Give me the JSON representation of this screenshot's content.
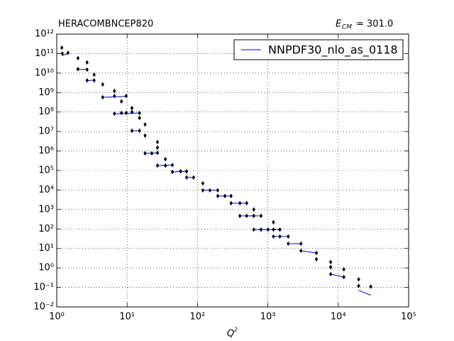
{
  "chart_data": {
    "type": "scatter",
    "title": "HERACOMBNCEP820",
    "energy_symbol": "E",
    "energy_subscript": "CM",
    "energy_text": "= 301.0",
    "xlabel": "Q",
    "xlabel_superscript": "2",
    "xscale": "log",
    "yscale": "log",
    "grid": true,
    "legend": "upper right",
    "xlim": [
      1,
      100000
    ],
    "ylim": [
      0.01,
      1000000000000
    ],
    "xticks": [
      {
        "value": 1,
        "label": "10⁰"
      },
      {
        "value": 10,
        "label": "10¹"
      },
      {
        "value": 100,
        "label": "10²"
      },
      {
        "value": 1000,
        "label": "10³"
      },
      {
        "value": 10000,
        "label": "10⁴"
      },
      {
        "value": 100000,
        "label": "10⁵"
      }
    ],
    "yticks": [
      {
        "value": 0.01,
        "label": "10⁻²"
      },
      {
        "value": 0.1,
        "label": "10⁻¹"
      },
      {
        "value": 1,
        "label": "10⁰"
      },
      {
        "value": 10,
        "label": "10¹"
      },
      {
        "value": 100,
        "label": "10²"
      },
      {
        "value": 1000,
        "label": "10³"
      },
      {
        "value": 10000,
        "label": "10⁴"
      },
      {
        "value": 100000,
        "label": "10⁵"
      },
      {
        "value": 1000000,
        "label": "10⁶"
      },
      {
        "value": 10000000,
        "label": "10⁷"
      },
      {
        "value": 100000000,
        "label": "10⁸"
      },
      {
        "value": 1000000000,
        "label": "10⁹"
      },
      {
        "value": 10000000000,
        "label": "10¹⁰"
      },
      {
        "value": 100000000000,
        "label": "10¹¹"
      },
      {
        "value": 1000000000000,
        "label": "10¹²"
      }
    ],
    "points": {
      "color": "#000000",
      "x": [
        1.18,
        1.2,
        1.45,
        2.0,
        2.0,
        2.7,
        2.7,
        2.7,
        3.4,
        3.4,
        4.5,
        4.5,
        6.6,
        6.6,
        6.6,
        8.3,
        8.3,
        9.7,
        9.7,
        11.7,
        11.7,
        11.7,
        15,
        15,
        15,
        18,
        18,
        18,
        22.4,
        27,
        27,
        27,
        27,
        35,
        35,
        44,
        44,
        57.5,
        70,
        70,
        88,
        119,
        119,
        150,
        194,
        194,
        245,
        300,
        300,
        400,
        500,
        630,
        400,
        500,
        630,
        800,
        630,
        800,
        1000,
        1200,
        1200,
        1200,
        1480,
        1480,
        1950,
        1950,
        2950,
        2950,
        4900,
        4900,
        7800,
        7800,
        7800,
        12000,
        12000,
        19500,
        19500,
        29000
      ],
      "values": [
        200000000000,
        100000000000,
        110000000000,
        58000000000,
        16000000000,
        35000000000,
        15000000000,
        4200000000,
        8300000000,
        4200000000,
        2600000000,
        570000000,
        1200000000,
        670000000,
        83000000,
        350000000,
        90000000,
        670000000,
        90000000,
        160000000,
        100000000,
        11000000,
        90000000,
        50000000,
        11000000,
        23000000,
        6200000,
        760000,
        760000,
        2900000,
        1500000,
        800000,
        180000,
        380000,
        180000,
        190000,
        85000,
        90000,
        90000,
        44000,
        44000,
        22000,
        9600,
        9600,
        9600,
        4900,
        4900,
        4900,
        2100,
        2100,
        2100,
        1000,
        470,
        470,
        470,
        470,
        93,
        93,
        93,
        220,
        93,
        41,
        93,
        41,
        41,
        17.6,
        17.6,
        7.6,
        5.9,
        2.8,
        2.0,
        1.1,
        0.48,
        0.85,
        0.34,
        0.26,
        0.12,
        0.11
      ]
    },
    "series": [
      {
        "name": "NNPDF30_nlo_as_0118",
        "color": "#0000ff",
        "x": [
          1.2,
          1.45,
          null,
          2.0,
          2.7,
          null,
          2.7,
          3.4,
          null,
          4.5,
          9.7,
          null,
          6.6,
          15,
          null,
          11.7,
          15,
          null,
          18,
          27,
          null,
          27,
          44,
          null,
          44,
          70,
          null,
          70,
          88,
          null,
          119,
          194,
          null,
          194,
          300,
          null,
          300,
          500,
          null,
          400,
          800,
          null,
          630,
          1480,
          null,
          1200,
          1950,
          null,
          1950,
          2950,
          null,
          2950,
          4900,
          null,
          7800,
          12000,
          null,
          19500,
          29000
        ],
        "values": [
          80000000000,
          100000000000,
          null,
          15000000000,
          16000000000,
          null,
          3900000000,
          4500000000,
          null,
          570000000,
          640000000,
          null,
          80000000,
          90000000,
          null,
          11000000,
          11000000,
          null,
          760000,
          800000,
          null,
          180000,
          190000,
          null,
          85000,
          90000,
          null,
          44000,
          44000,
          null,
          9600,
          9600,
          null,
          4900,
          4900,
          null,
          2100,
          2100,
          null,
          470,
          470,
          null,
          93,
          93,
          null,
          41,
          41,
          null,
          17.6,
          17.6,
          null,
          7.6,
          5.9,
          null,
          0.48,
          0.34,
          null,
          0.07,
          0.04
        ]
      }
    ]
  }
}
